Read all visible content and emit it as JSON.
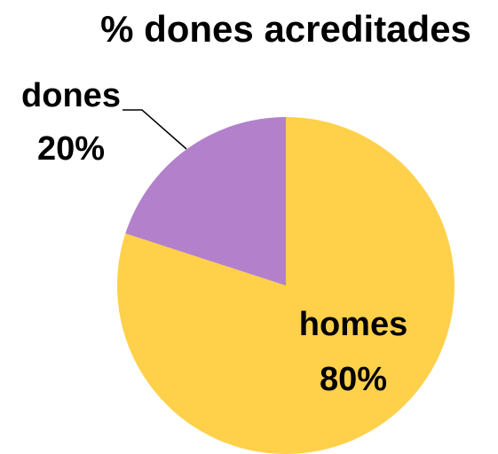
{
  "chart_data": {
    "type": "pie",
    "title": "% dones acreditades",
    "categories": [
      "homes",
      "dones"
    ],
    "values": [
      80,
      20
    ],
    "value_labels": [
      "80%",
      "20%"
    ],
    "colors": [
      "#FFD04A",
      "#B381CB"
    ]
  }
}
